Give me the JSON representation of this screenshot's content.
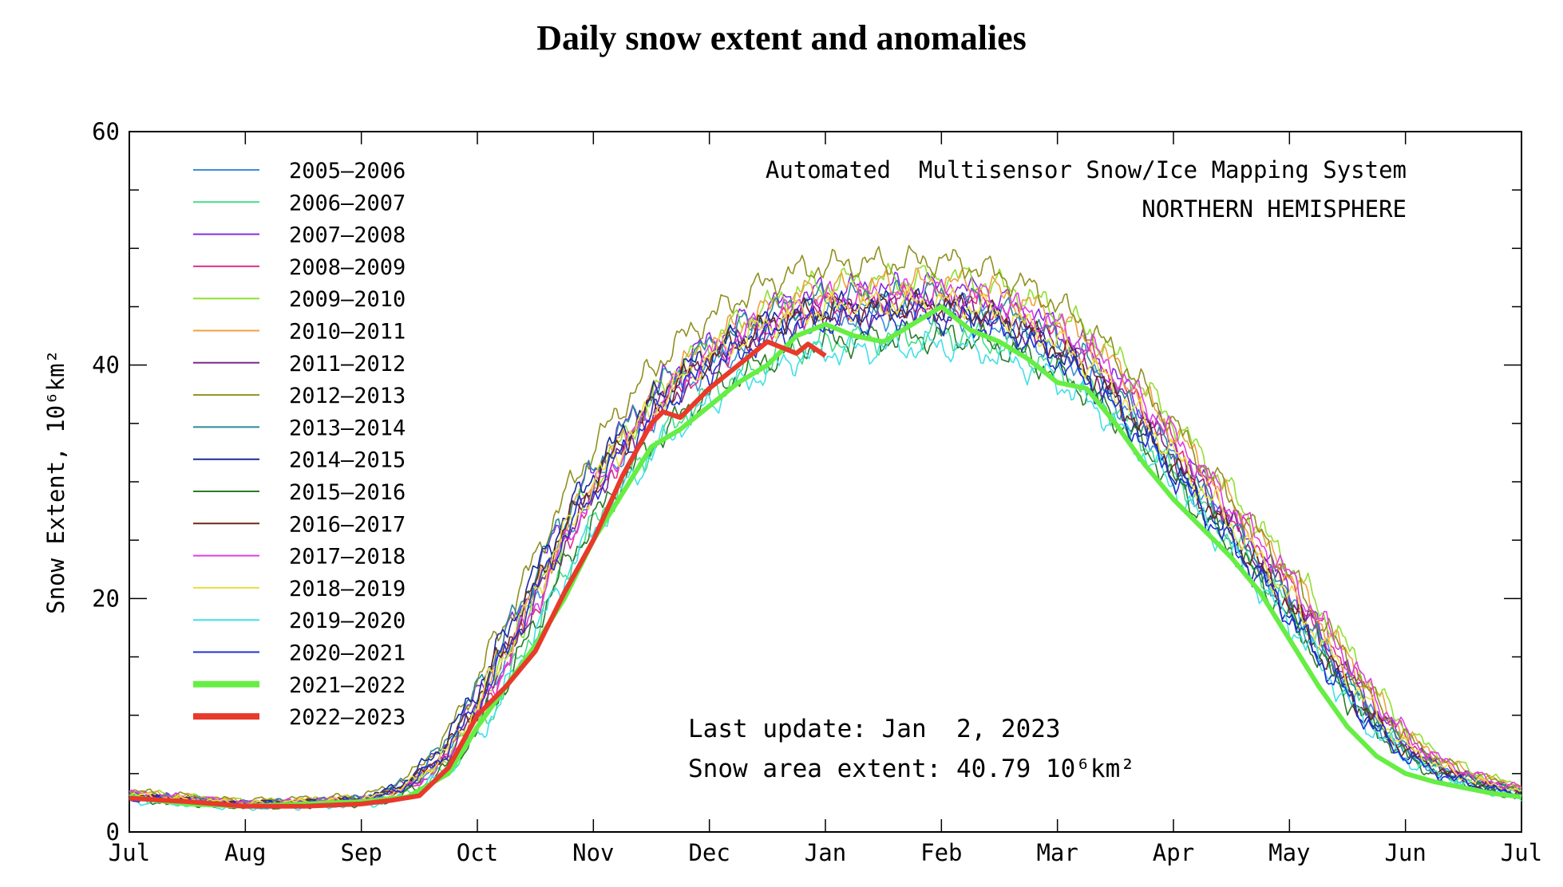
{
  "page": {
    "title": "Daily snow extent and anomalies"
  },
  "chart_data": {
    "type": "line",
    "title": "Daily snow extent and anomalies",
    "system_label": "Automated  Multisensor Snow/Ice Mapping System",
    "region_label": "NORTHERN HEMISPHERE",
    "ylabel": "Snow Extent, 10⁶km²",
    "xlabel": "",
    "ylim": [
      0,
      60
    ],
    "y_ticks": [
      0,
      20,
      40,
      60
    ],
    "x_ticks": [
      "Jul",
      "Aug",
      "Sep",
      "Oct",
      "Nov",
      "Dec",
      "Jan",
      "Feb",
      "Mar",
      "Apr",
      "May",
      "Jun",
      "Jul"
    ],
    "xlim_months": [
      0,
      12
    ],
    "grid": false,
    "legend_placement": "top-left",
    "annotations": {
      "last_update": "Last update: Jan  2, 2023",
      "snow_area": "Snow area extent: 40.79 10⁶km²"
    },
    "envelope": {
      "x": [
        0,
        1,
        2,
        2.25,
        2.5,
        2.75,
        3,
        3.25,
        3.5,
        3.75,
        4,
        4.25,
        4.5,
        4.75,
        5,
        5.25,
        5.5,
        5.75,
        6,
        6.25,
        6.5,
        6.75,
        7,
        7.25,
        7.5,
        7.75,
        8,
        8.25,
        8.5,
        8.75,
        9,
        9.25,
        9.5,
        9.75,
        10,
        10.25,
        10.5,
        10.75,
        11,
        11.25,
        11.5,
        11.75,
        12
      ],
      "y": [
        3.0,
        2.3,
        2.6,
        3.1,
        4.3,
        6.5,
        10.0,
        14.5,
        19.5,
        24.5,
        28.5,
        32.0,
        35.0,
        37.5,
        39.5,
        41.0,
        42.3,
        43.3,
        43.8,
        44.0,
        44.1,
        44.2,
        44.3,
        44.0,
        43.3,
        42.3,
        41.0,
        39.3,
        37.0,
        34.3,
        31.5,
        28.5,
        25.5,
        22.5,
        19.5,
        16.0,
        12.5,
        9.5,
        7.0,
        5.5,
        4.5,
        3.8,
        3.3
      ]
    },
    "series": [
      {
        "name": "2005–2006",
        "color": "#3a8fd8",
        "width": 1.6,
        "dx": -0.02,
        "dy": 0.3,
        "f": 1.0,
        "p": 0.0,
        "xmax": 12
      },
      {
        "name": "2006–2007",
        "color": "#44dd88",
        "width": 1.6,
        "dx": 0.06,
        "dy": -0.5,
        "f": 0.97,
        "p": 1.3,
        "xmax": 12
      },
      {
        "name": "2007–2008",
        "color": "#8a2be2",
        "width": 1.6,
        "dx": -0.03,
        "dy": 1.2,
        "f": 1.03,
        "p": 2.1,
        "xmax": 12
      },
      {
        "name": "2008–2009",
        "color": "#e0308a",
        "width": 1.6,
        "dx": 0.05,
        "dy": 0.8,
        "f": 1.01,
        "p": 0.7,
        "xmax": 12
      },
      {
        "name": "2009–2010",
        "color": "#8fe030",
        "width": 1.6,
        "dx": 0.08,
        "dy": 1.6,
        "f": 1.04,
        "p": 3.3,
        "xmax": 12
      },
      {
        "name": "2010–2011",
        "color": "#f0a040",
        "width": 1.6,
        "dx": 0.04,
        "dy": 1.5,
        "f": 1.03,
        "p": 4.1,
        "xmax": 12
      },
      {
        "name": "2011–2012",
        "color": "#7a2a8a",
        "width": 1.6,
        "dx": 0.01,
        "dy": 0.6,
        "f": 1.0,
        "p": 2.7,
        "xmax": 12
      },
      {
        "name": "2012–2013",
        "color": "#909020",
        "width": 1.6,
        "dx": -0.04,
        "dy": 2.2,
        "f": 1.06,
        "p": 5.2,
        "xmax": 12
      },
      {
        "name": "2013–2014",
        "color": "#2a8a9a",
        "width": 1.6,
        "dx": -0.07,
        "dy": 0.9,
        "f": 1.02,
        "p": 1.9,
        "xmax": 12
      },
      {
        "name": "2014–2015",
        "color": "#1a2a9a",
        "width": 1.6,
        "dx": -0.1,
        "dy": 0.5,
        "f": 1.01,
        "p": 3.9,
        "xmax": 12
      },
      {
        "name": "2015–2016",
        "color": "#2a7a2a",
        "width": 1.6,
        "dx": 0.02,
        "dy": -1.0,
        "f": 0.98,
        "p": 6.1,
        "xmax": 12
      },
      {
        "name": "2016–2017",
        "color": "#6a2a1a",
        "width": 1.6,
        "dx": -0.05,
        "dy": 0.4,
        "f": 1.01,
        "p": 4.6,
        "xmax": 12
      },
      {
        "name": "2017–2018",
        "color": "#e040e0",
        "width": 1.6,
        "dx": 0.07,
        "dy": 1.1,
        "f": 1.02,
        "p": 0.3,
        "xmax": 12
      },
      {
        "name": "2018–2019",
        "color": "#e8e040",
        "width": 1.6,
        "dx": -0.01,
        "dy": 0.7,
        "f": 1.01,
        "p": 5.7,
        "xmax": 12
      },
      {
        "name": "2019–2020",
        "color": "#40e0e8",
        "width": 1.6,
        "dx": 0.03,
        "dy": -1.4,
        "f": 0.97,
        "p": 2.4,
        "xmax": 12
      },
      {
        "name": "2020–2021",
        "color": "#2030d0",
        "width": 1.6,
        "dx": -0.06,
        "dy": -0.2,
        "f": 1.0,
        "p": 3.6,
        "xmax": 12
      },
      {
        "name": "2021–2022",
        "color": "#66ee44",
        "width": 6,
        "dx": 0.0,
        "dy": 0.0,
        "f": 1.0,
        "p": 0.0,
        "xmax": 12
      },
      {
        "name": "2022–2023",
        "color": "#e83a2a",
        "width": 6,
        "dx": 0.0,
        "dy": 0.0,
        "f": 1.0,
        "p": 0.0,
        "xmax": 6.0
      }
    ],
    "highlight_2021_2022": {
      "x": [
        0,
        0.5,
        1,
        1.5,
        2,
        2.4,
        2.75,
        3.0,
        3.25,
        3.5,
        3.75,
        4.0,
        4.25,
        4.5,
        4.75,
        5.0,
        5.25,
        5.5,
        5.75,
        6.0,
        6.25,
        6.5,
        6.75,
        7.0,
        7.25,
        7.5,
        7.75,
        8.0,
        8.25,
        8.5,
        8.75,
        9.0,
        9.25,
        9.5,
        9.75,
        10.0,
        10.25,
        10.5,
        10.75,
        11.0,
        11.25,
        11.5,
        11.75,
        12.0
      ],
      "y": [
        3.0,
        2.4,
        2.2,
        2.4,
        2.6,
        3.0,
        5.0,
        9.0,
        12.5,
        16.0,
        20.0,
        25.0,
        29.0,
        33.0,
        34.5,
        36.5,
        38.5,
        40.0,
        42.5,
        43.5,
        42.5,
        42.0,
        43.5,
        45.0,
        43.0,
        42.0,
        40.5,
        38.5,
        38.0,
        35.0,
        31.5,
        28.5,
        26.0,
        23.5,
        20.5,
        16.5,
        12.5,
        9.0,
        6.5,
        5.0,
        4.3,
        3.8,
        3.3,
        3.0
      ]
    },
    "current_2022_2023": {
      "x": [
        0,
        0.5,
        1,
        1.5,
        2,
        2.25,
        2.5,
        2.75,
        3.0,
        3.25,
        3.5,
        3.75,
        4.0,
        4.25,
        4.5,
        4.6,
        4.75,
        5.0,
        5.25,
        5.5,
        5.75,
        5.85,
        6.0
      ],
      "y": [
        2.9,
        2.6,
        2.2,
        2.2,
        2.4,
        2.7,
        3.1,
        5.5,
        10.0,
        12.5,
        15.5,
        20.5,
        25.0,
        30.5,
        35.0,
        36.0,
        35.5,
        38.0,
        40.0,
        42.0,
        41.0,
        41.8,
        40.8
      ]
    }
  }
}
